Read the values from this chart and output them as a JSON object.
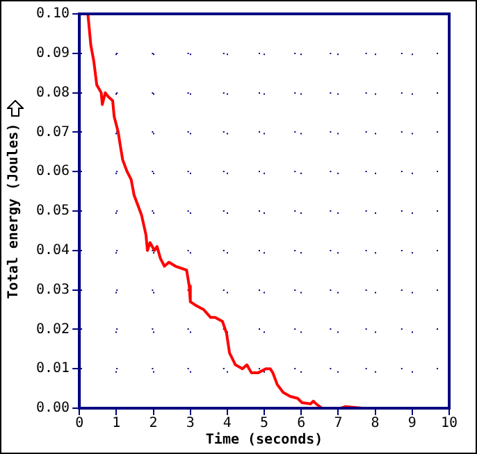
{
  "chart_data": {
    "type": "line",
    "xlabel": "Time (seconds)",
    "ylabel": "Total energy (Joules)",
    "xlim": [
      0,
      10
    ],
    "ylim": [
      0,
      0.1
    ],
    "xticks": [
      0,
      1,
      2,
      3,
      4,
      5,
      6,
      7,
      8,
      9,
      10
    ],
    "yticks": [
      {
        "value": 0,
        "label": "0.00"
      },
      {
        "value": 0.01,
        "label": "0.01"
      },
      {
        "value": 0.02,
        "label": "0.02"
      },
      {
        "value": 0.03,
        "label": "0.03"
      },
      {
        "value": 0.04,
        "label": "0.04"
      },
      {
        "value": 0.05,
        "label": "0.05"
      },
      {
        "value": 0.06,
        "label": "0.06"
      },
      {
        "value": 0.07,
        "label": "0.07"
      },
      {
        "value": 0.08,
        "label": "0.08"
      },
      {
        "value": 0.09,
        "label": "0.09"
      },
      {
        "value": 0.1,
        "label": "0.10"
      }
    ],
    "grid": true,
    "marker": "none",
    "line_style": "solid",
    "legend": false,
    "series": [
      {
        "color": "#ff0000",
        "x": [
          0.23,
          0.31,
          0.39,
          0.47,
          0.59,
          0.62,
          0.7,
          0.78,
          0.9,
          0.94,
          1.05,
          1.1,
          1.17,
          1.29,
          1.4,
          1.48,
          1.6,
          1.68,
          1.8,
          1.84,
          1.91,
          2.03,
          2.1,
          2.19,
          2.3,
          2.42,
          2.6,
          2.9,
          2.97,
          3.0,
          3.16,
          3.36,
          3.55,
          3.67,
          3.87,
          3.98,
          4.06,
          4.22,
          4.41,
          4.53,
          4.65,
          4.84,
          5.04,
          5.16,
          5.23,
          5.35,
          5.51,
          5.7,
          5.9,
          6.02,
          6.25,
          6.33,
          6.4,
          6.56,
          7.07,
          7.2,
          7.66
        ],
        "values": [
          0.1,
          0.092,
          0.088,
          0.082,
          0.08,
          0.077,
          0.08,
          0.079,
          0.078,
          0.074,
          0.07,
          0.067,
          0.063,
          0.06,
          0.058,
          0.054,
          0.051,
          0.049,
          0.044,
          0.04,
          0.042,
          0.04,
          0.041,
          0.038,
          0.036,
          0.037,
          0.036,
          0.035,
          0.031,
          0.027,
          0.026,
          0.025,
          0.023,
          0.023,
          0.022,
          0.019,
          0.014,
          0.011,
          0.01,
          0.011,
          0.009,
          0.009,
          0.01,
          0.01,
          0.009,
          0.006,
          0.004,
          0.003,
          0.0025,
          0.0014,
          0.0011,
          0.0018,
          0.0011,
          0,
          0,
          0.0004,
          0
        ]
      }
    ]
  }
}
